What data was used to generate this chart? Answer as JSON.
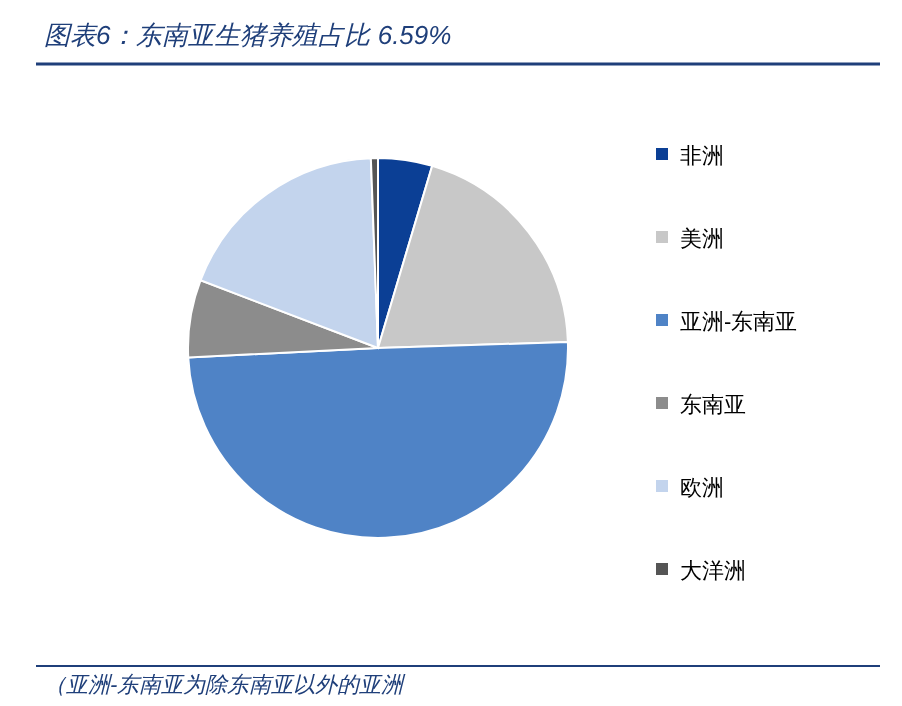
{
  "chart_data": {
    "type": "pie",
    "title": "图表6：东南亚生猪养殖占比 6.59%",
    "categories": [
      "非洲",
      "美洲",
      "亚洲-东南亚",
      "东南亚",
      "欧洲",
      "大洋洲"
    ],
    "values": [
      4.6,
      19.9,
      49.71,
      6.59,
      18.6,
      0.6
    ],
    "colors": [
      "#0b3f95",
      "#c8c8c8",
      "#4f83c6",
      "#8c8c8c",
      "#c3d4ed",
      "#555555"
    ],
    "legend": "right",
    "annotations": [
      "（亚洲-东南亚为除东南亚以外的亚洲"
    ]
  }
}
